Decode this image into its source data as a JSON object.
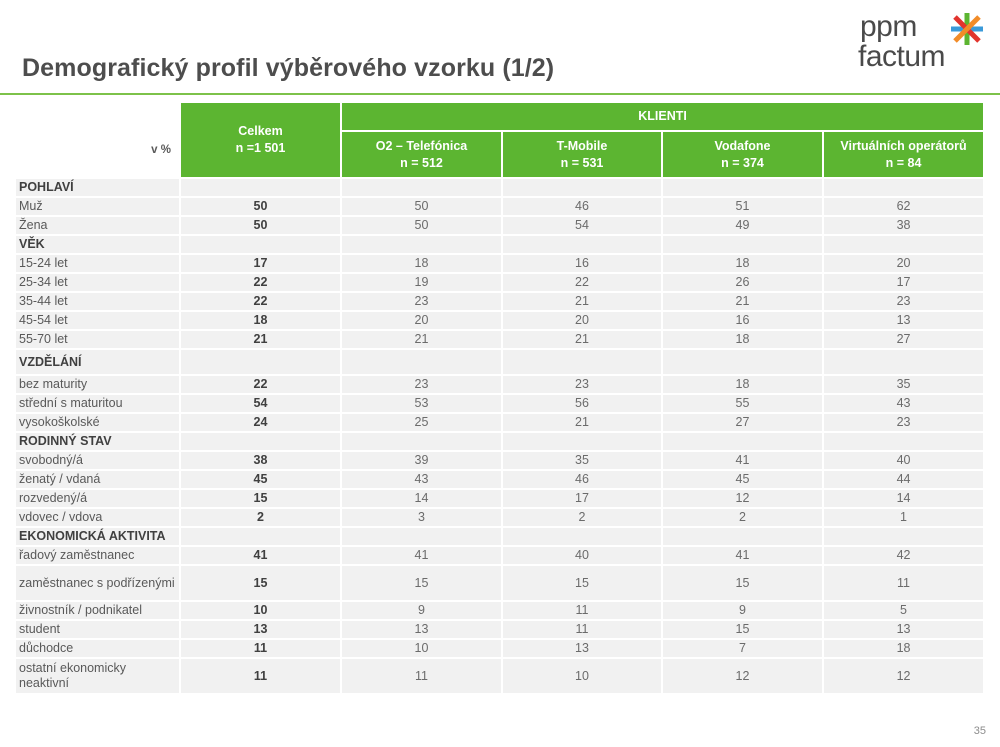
{
  "page": {
    "title": "Demografický profil výběrového vzorku (1/2)",
    "page_number": "35",
    "accent_color": "#5cb531",
    "rule_color": "#7dc24a"
  },
  "logo": {
    "line1": "ppm",
    "line2": "factum",
    "star_colors": [
      "#f28c28",
      "#3a9ad9",
      "#5cb531",
      "#e2342d"
    ]
  },
  "table": {
    "unit_label": "v %",
    "total_header": {
      "name": "Celkem",
      "n": "n =1 501"
    },
    "group_header": "KLIENTI",
    "columns": [
      {
        "name": "O2 – Telefónica",
        "n": "n = 512"
      },
      {
        "name": "T-Mobile",
        "n": "n = 531"
      },
      {
        "name": "Vodafone",
        "n": "n = 374"
      },
      {
        "name": "Virtuálních operátorů",
        "n": "n = 84"
      }
    ],
    "rows": [
      {
        "label": "POHLAVÍ",
        "section": true,
        "values": [
          "",
          "",
          "",
          "",
          ""
        ]
      },
      {
        "label": "Muž",
        "values": [
          "50",
          "50",
          "46",
          "51",
          "62"
        ]
      },
      {
        "label": "Žena",
        "values": [
          "50",
          "50",
          "54",
          "49",
          "38"
        ]
      },
      {
        "label": "VĚK",
        "section": true,
        "values": [
          "",
          "",
          "",
          "",
          ""
        ]
      },
      {
        "label": "15-24 let",
        "values": [
          "17",
          "18",
          "16",
          "18",
          "20"
        ]
      },
      {
        "label": "25-34 let",
        "values": [
          "22",
          "19",
          "22",
          "26",
          "17"
        ]
      },
      {
        "label": "35-44 let",
        "values": [
          "22",
          "23",
          "21",
          "21",
          "23"
        ]
      },
      {
        "label": "45-54 let",
        "values": [
          "18",
          "20",
          "20",
          "16",
          "13"
        ]
      },
      {
        "label": "55-70 let",
        "values": [
          "21",
          "21",
          "21",
          "18",
          "27"
        ]
      },
      {
        "label": "VZDĚLÁNÍ",
        "section": true,
        "values": [
          "",
          "",
          "",
          "",
          ""
        ]
      },
      {
        "label": "bez maturity",
        "values": [
          "22",
          "23",
          "23",
          "18",
          "35"
        ]
      },
      {
        "label": "střední s maturitou",
        "values": [
          "54",
          "53",
          "56",
          "55",
          "43"
        ]
      },
      {
        "label": "vysokoškolské",
        "values": [
          "24",
          "25",
          "21",
          "27",
          "23"
        ]
      },
      {
        "label": "RODINNÝ STAV",
        "section": true,
        "values": [
          "",
          "",
          "",
          "",
          ""
        ]
      },
      {
        "label": "svobodný/á",
        "values": [
          "38",
          "39",
          "35",
          "41",
          "40"
        ]
      },
      {
        "label": "ženatý / vdaná",
        "values": [
          "45",
          "43",
          "46",
          "45",
          "44"
        ]
      },
      {
        "label": "rozvedený/á",
        "values": [
          "15",
          "14",
          "17",
          "12",
          "14"
        ]
      },
      {
        "label": "vdovec / vdova",
        "values": [
          "2",
          "3",
          "2",
          "2",
          "1"
        ]
      },
      {
        "label": "EKONOMICKÁ AKTIVITA",
        "section": true,
        "values": [
          "",
          "",
          "",
          "",
          ""
        ]
      },
      {
        "label": "řadový zaměstnanec",
        "values": [
          "41",
          "41",
          "40",
          "41",
          "42"
        ]
      },
      {
        "label": "zaměstnanec s podřízenými",
        "values": [
          "15",
          "15",
          "15",
          "15",
          "11"
        ]
      },
      {
        "label": "živnostník / podnikatel",
        "values": [
          "10",
          "9",
          "11",
          "9",
          "5"
        ]
      },
      {
        "label": "student",
        "values": [
          "13",
          "13",
          "11",
          "15",
          "13"
        ]
      },
      {
        "label": "důchodce",
        "values": [
          "11",
          "10",
          "13",
          "7",
          "18"
        ]
      },
      {
        "label": "ostatní ekonomicky neaktivní",
        "values": [
          "11",
          "11",
          "10",
          "12",
          "12"
        ]
      }
    ]
  }
}
